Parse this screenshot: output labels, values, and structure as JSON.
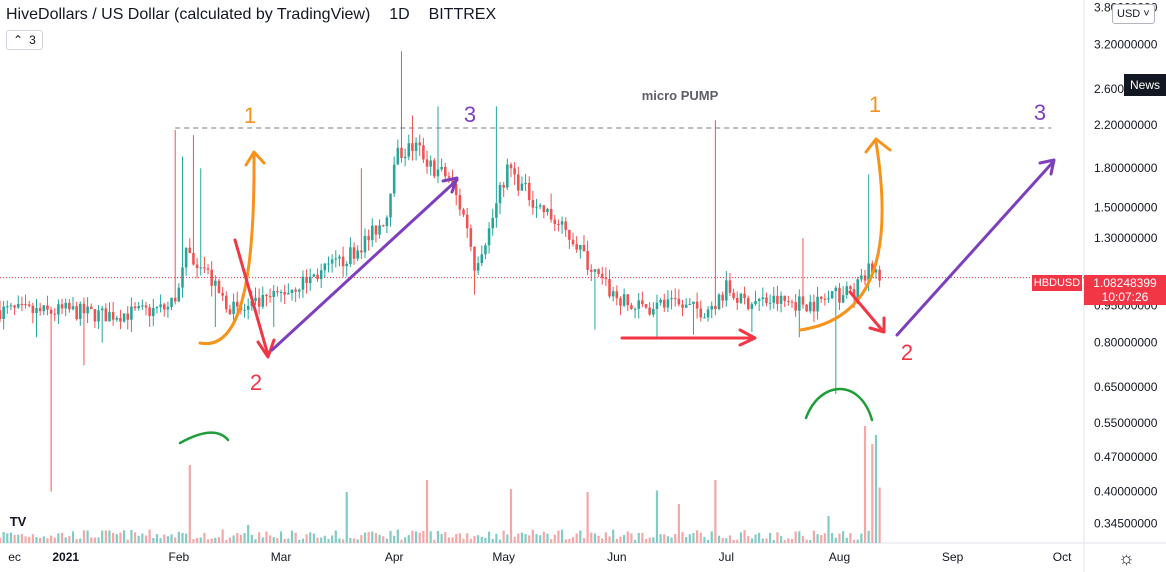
{
  "header": {
    "symbol_title": "HiveDollars / US Dollar (calculated by TradingView)",
    "interval": "1D",
    "exchange": "BITTREX",
    "indicator_toggle_count": "3",
    "currency": "USD",
    "news_label": "News"
  },
  "last_price": {
    "ticker": "HBDUSD",
    "price": "1.08248399",
    "countdown": "10:07:26"
  },
  "chart_data": {
    "type": "candlestick",
    "price_axis": {
      "scale": "log",
      "ticks": [
        3.8,
        3.2,
        2.6,
        2.2,
        1.8,
        1.5,
        1.3,
        1.1,
        0.95,
        0.8,
        0.65,
        0.55,
        0.47,
        0.4,
        0.345
      ],
      "tick_labels": [
        "3.80000000",
        "3.20000000",
        "2.60000000",
        "2.20000000",
        "1.80000000",
        "1.50000000",
        "1.30000000",
        "",
        "0.95000000",
        "0.80000000",
        "0.65000000",
        "0.55000000",
        "0.47000000",
        "0.40000000",
        "0.34500000"
      ],
      "range": [
        0.33,
        3.9
      ]
    },
    "time_axis": {
      "labels": [
        "ec",
        "2021",
        "Feb",
        "Mar",
        "Apr",
        "May",
        "Jun",
        "Jul",
        "Aug",
        "Sep",
        "Oct"
      ],
      "label_days": [
        -14,
        0,
        31,
        59,
        90,
        120,
        151,
        181,
        212,
        243,
        273
      ],
      "range_days": [
        -18,
        279
      ]
    },
    "price_keypoints": [
      [
        -18,
        0.93
      ],
      [
        -5,
        0.92
      ],
      [
        0,
        0.93
      ],
      [
        10,
        0.91
      ],
      [
        20,
        0.92
      ],
      [
        28,
        0.94
      ],
      [
        31,
        1.02
      ],
      [
        33,
        1.2
      ],
      [
        37,
        1.17
      ],
      [
        42,
        1.0
      ],
      [
        47,
        0.92
      ],
      [
        55,
        0.97
      ],
      [
        65,
        1.06
      ],
      [
        75,
        1.16
      ],
      [
        83,
        1.3
      ],
      [
        88,
        1.45
      ],
      [
        90,
        1.9
      ],
      [
        93,
        1.95
      ],
      [
        96,
        2.0
      ],
      [
        100,
        1.82
      ],
      [
        105,
        1.72
      ],
      [
        110,
        1.38
      ],
      [
        112,
        1.15
      ],
      [
        116,
        1.35
      ],
      [
        121,
        1.8
      ],
      [
        125,
        1.65
      ],
      [
        130,
        1.5
      ],
      [
        135,
        1.38
      ],
      [
        140,
        1.27
      ],
      [
        145,
        1.1
      ],
      [
        150,
        1.0
      ],
      [
        155,
        0.94
      ],
      [
        165,
        0.95
      ],
      [
        175,
        0.93
      ],
      [
        178,
        0.97
      ],
      [
        181,
        1.03
      ],
      [
        185,
        0.97
      ],
      [
        195,
        0.97
      ],
      [
        205,
        0.96
      ],
      [
        212,
        1.0
      ],
      [
        216,
        1.02
      ],
      [
        219,
        1.08
      ],
      [
        221,
        1.15
      ],
      [
        223,
        1.09
      ]
    ],
    "price_spikes": [
      [
        30,
        2.15
      ],
      [
        32,
        1.9
      ],
      [
        35,
        2.1
      ],
      [
        37,
        1.8
      ],
      [
        81,
        1.8
      ],
      [
        92,
        3.1
      ],
      [
        95,
        2.3
      ],
      [
        102,
        2.4
      ],
      [
        118,
        2.4
      ],
      [
        133,
        1.6
      ],
      [
        178,
        2.25
      ],
      [
        202,
        1.3
      ],
      [
        220,
        1.75
      ]
    ],
    "price_wicks_down": [
      [
        -17,
        0.85
      ],
      [
        -8,
        0.82
      ],
      [
        -4,
        0.4
      ],
      [
        5,
        0.72
      ],
      [
        10,
        0.8
      ],
      [
        18,
        0.84
      ],
      [
        41,
        0.86
      ],
      [
        57,
        0.86
      ],
      [
        112,
        1.0
      ],
      [
        145,
        0.85
      ],
      [
        162,
        0.82
      ],
      [
        172,
        0.83
      ],
      [
        188,
        0.84
      ],
      [
        201,
        0.82
      ],
      [
        211,
        0.63
      ]
    ],
    "volume_spikes": [
      [
        34,
        0.52
      ],
      [
        50,
        0.12
      ],
      [
        77,
        0.34
      ],
      [
        99,
        0.42
      ],
      [
        122,
        0.36
      ],
      [
        143,
        0.34
      ],
      [
        162,
        0.35
      ],
      [
        168,
        0.26
      ],
      [
        178,
        0.42
      ],
      [
        209,
        0.18
      ],
      [
        219,
        0.78
      ],
      [
        221,
        0.66
      ],
      [
        222,
        0.72
      ],
      [
        223,
        0.37
      ]
    ],
    "last_price_line": 1.08248399,
    "resistance_level": 2.17,
    "annotations": {
      "micro_pump": "micro PUMP",
      "waves": [
        "1",
        "2",
        "3",
        "1",
        "2",
        "3"
      ]
    },
    "colors": {
      "up": "#26a69a",
      "down": "#ef5350",
      "up_volume": "#80cbc4",
      "down_volume": "#f4a7a6",
      "wave1": "#f7931a",
      "wave2": "#f23645",
      "wave3": "#7e3fbf",
      "arc": "#1f9d3a",
      "text": "#131722"
    }
  }
}
